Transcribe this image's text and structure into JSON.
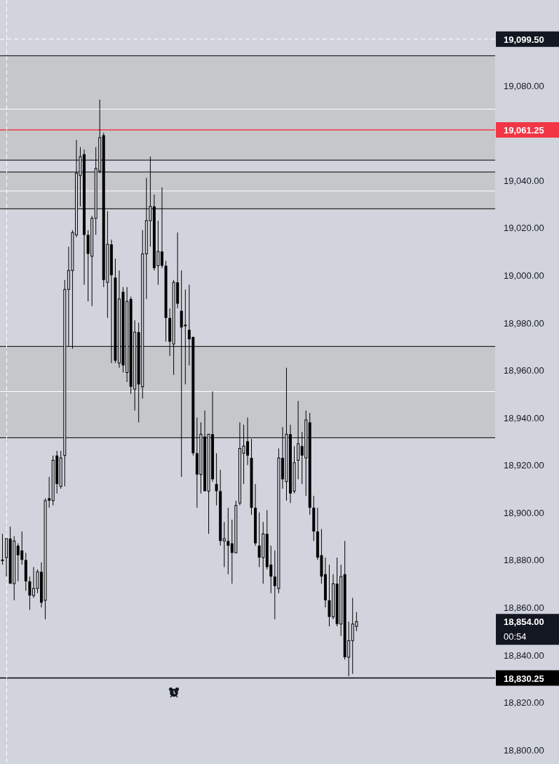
{
  "chart_data": {
    "type": "candlestick",
    "color": "#000000",
    "categories": [
      null,
      null,
      null,
      null,
      null,
      null,
      null,
      null,
      null,
      null,
      null,
      null,
      null,
      null,
      null,
      null,
      null,
      null,
      null,
      null,
      null,
      null,
      null,
      null,
      null,
      null,
      null,
      null,
      null,
      null,
      null,
      null,
      null,
      null,
      null,
      null,
      null,
      null,
      null,
      null,
      null,
      null,
      null,
      null,
      null,
      null,
      null,
      null,
      null,
      null,
      null,
      null,
      null,
      null,
      null,
      null,
      null,
      null,
      null,
      null,
      null,
      null,
      null,
      null,
      null,
      null,
      null,
      null,
      null,
      null,
      null,
      null,
      null,
      null,
      null,
      null,
      null,
      null,
      null,
      null,
      null,
      null,
      null,
      null,
      null,
      null,
      null,
      null,
      null,
      null,
      null,
      null,
      null,
      null,
      null,
      null,
      null,
      null,
      null,
      null,
      null,
      null,
      null,
      null,
      null,
      null,
      null,
      null,
      null,
      null,
      null,
      null,
      null,
      null,
      null,
      null,
      null,
      null,
      null,
      null,
      null,
      null,
      null,
      null,
      null,
      null,
      null
    ],
    "ohlc": [
      [
        18880,
        18891,
        18878,
        18880
      ],
      [
        18881,
        18889,
        18873,
        18889
      ],
      [
        18889,
        18894,
        18870,
        18870
      ],
      [
        18870,
        18890,
        18863,
        18888
      ],
      [
        18886,
        18887,
        18871,
        18882
      ],
      [
        18884,
        18892,
        18878,
        18880
      ],
      [
        18880,
        18883,
        18867,
        18871
      ],
      [
        18871,
        18873,
        18859,
        18865
      ],
      [
        18865,
        18877,
        18864,
        18868
      ],
      [
        18868,
        18876,
        18866,
        18875
      ],
      [
        18875,
        18879,
        18860,
        18862
      ],
      [
        18863,
        18906,
        18855,
        18905
      ],
      [
        18906,
        18915,
        18902,
        18905
      ],
      [
        18905,
        18924,
        18903,
        18922
      ],
      [
        18924,
        18926,
        18908,
        18912
      ],
      [
        18911,
        18926,
        18910,
        18923
      ],
      [
        18924,
        18998,
        18911,
        18994
      ],
      [
        18994,
        19012,
        18970,
        19002
      ],
      [
        19002,
        19019,
        18969,
        19018
      ],
      [
        19017,
        19057,
        19016,
        19043
      ],
      [
        19042,
        19054,
        19029,
        19050
      ],
      [
        19051,
        19053,
        18996,
        19017
      ],
      [
        19017,
        19019,
        18989,
        19009
      ],
      [
        19008,
        19025,
        18987,
        19024
      ],
      [
        19024,
        19054,
        19017,
        19045
      ],
      [
        19044,
        19074,
        19043,
        19058
      ],
      [
        19059,
        19060,
        18995,
        18998
      ],
      [
        18997,
        19027,
        18982,
        19013
      ],
      [
        19013,
        19015,
        18963,
        19000
      ],
      [
        18999,
        19007,
        18963,
        18964
      ],
      [
        18963,
        19002,
        18961,
        18990
      ],
      [
        18993,
        18995,
        18959,
        18962
      ],
      [
        18959,
        18995,
        18955,
        18989
      ],
      [
        18990,
        18991,
        18950,
        18953
      ],
      [
        18952,
        18981,
        18943,
        18976
      ],
      [
        18976,
        18980,
        18938,
        18954
      ],
      [
        18953,
        19019,
        18948,
        19009
      ],
      [
        19009,
        19041,
        18990,
        19023
      ],
      [
        19023,
        19050,
        19012,
        19029
      ],
      [
        19029,
        19034,
        19002,
        19003
      ],
      [
        19004,
        19023,
        18996,
        19010
      ],
      [
        19010,
        19037,
        19003,
        19004
      ],
      [
        19004,
        19006,
        18972,
        18982
      ],
      [
        18982,
        18986,
        18966,
        18972
      ],
      [
        18971,
        18998,
        18958,
        18997
      ],
      [
        18997,
        19018,
        18986,
        18988
      ],
      [
        18985,
        19002,
        18915,
        18978
      ],
      [
        18979,
        18994,
        18954,
        18979
      ],
      [
        18977,
        18996,
        18962,
        18973
      ],
      [
        18974,
        18974,
        18924,
        18925
      ],
      [
        18925,
        18940,
        18902,
        18916
      ],
      [
        18916,
        18938,
        18908,
        18933
      ],
      [
        18932,
        18943,
        18909,
        18909
      ],
      [
        18909,
        18933,
        18891,
        18933
      ],
      [
        18933,
        18951,
        18913,
        18914
      ],
      [
        18912,
        18925,
        18903,
        18909
      ],
      [
        18909,
        18918,
        18886,
        18888
      ],
      [
        18888,
        18896,
        18877,
        18889
      ],
      [
        18888,
        18902,
        18874,
        18886
      ],
      [
        18887,
        18897,
        18870,
        18883
      ],
      [
        18883,
        18905,
        18883,
        18903
      ],
      [
        18904,
        18938,
        18903,
        18927
      ],
      [
        18925,
        18937,
        18912,
        18928
      ],
      [
        18930,
        18940,
        18920,
        18924
      ],
      [
        18923,
        18931,
        18899,
        18902
      ],
      [
        18902,
        18912,
        18886,
        18887
      ],
      [
        18886,
        18900,
        18877,
        18881
      ],
      [
        18881,
        18896,
        18870,
        18891
      ],
      [
        18891,
        18901,
        18876,
        18877
      ],
      [
        18878,
        18886,
        18866,
        18873
      ],
      [
        18873,
        18884,
        18855,
        18869
      ],
      [
        18868,
        18927,
        18866,
        18923
      ],
      [
        18923,
        18936,
        18910,
        18914
      ],
      [
        18913,
        18961,
        18905,
        18933
      ],
      [
        18933,
        18937,
        18904,
        18908
      ],
      [
        18909,
        18928,
        18908,
        18921
      ],
      [
        18922,
        18947,
        18914,
        18929
      ],
      [
        18928,
        18934,
        18912,
        18924
      ],
      [
        18923,
        18943,
        18907,
        18939
      ],
      [
        18938,
        18942,
        18899,
        18902
      ],
      [
        18902,
        18907,
        18888,
        18892
      ],
      [
        18892,
        18902,
        18880,
        18881
      ],
      [
        18882,
        18893,
        18870,
        18873
      ],
      [
        18874,
        18881,
        18860,
        18863
      ],
      [
        18863,
        18878,
        18852,
        18856
      ],
      [
        18856,
        18874,
        18855,
        18870
      ],
      [
        18870,
        18881,
        18852,
        18853
      ],
      [
        18853,
        18878,
        18848,
        18873
      ],
      [
        18874,
        18888,
        18838,
        18839
      ],
      [
        18839,
        18854,
        18831,
        18846
      ],
      [
        18846,
        18864,
        18832,
        18853
      ],
      [
        18852,
        18858,
        18850,
        18854
      ],
      null,
      null,
      null,
      null,
      null,
      null,
      null,
      null,
      null,
      null,
      null,
      null,
      null,
      null,
      null,
      null,
      null,
      null,
      null,
      null,
      null,
      null,
      null,
      null,
      null,
      null,
      null,
      null,
      null,
      null,
      null,
      null,
      null,
      null,
      null
    ],
    "ylim": [
      18794,
      19116
    ],
    "yticks": [
      {
        "value": 18800,
        "label": "18,800.00"
      },
      {
        "value": 18820,
        "label": "18,820.00"
      },
      {
        "value": 18840,
        "label": "18,840.00"
      },
      {
        "value": 18860,
        "label": "18,860.00"
      },
      {
        "value": 18880,
        "label": "18,880.00"
      },
      {
        "value": 18900,
        "label": "18,900.00"
      },
      {
        "value": 18920,
        "label": "18,920.00"
      },
      {
        "value": 18940,
        "label": "18,940.00"
      },
      {
        "value": 18960,
        "label": "18,960.00"
      },
      {
        "value": 18980,
        "label": "18,980.00"
      },
      {
        "value": 19000,
        "label": "19,000.00"
      },
      {
        "value": 19020,
        "label": "19,020.00"
      },
      {
        "value": 19040,
        "label": "19,040.00"
      },
      {
        "value": 19080,
        "label": "19,080.00"
      }
    ],
    "tick_labels": "y",
    "bands": [
      {
        "axis": "y",
        "from": 19048.5,
        "to": 19092.5,
        "color": "#c6c7cb"
      },
      {
        "axis": "y",
        "from": 19028,
        "to": 19043.5,
        "color": "#c6c7cb"
      },
      {
        "axis": "y",
        "from": 18931.5,
        "to": 18970,
        "color": "#c6c7cb"
      }
    ],
    "ref_lines": [
      {
        "axis": "y",
        "value": 19099.5,
        "label": "19,099.50",
        "color": "#ffffff",
        "line_style": "dashed"
      },
      {
        "axis": "y",
        "value": 19061.25,
        "label": "19,061.25",
        "color": "#f23645"
      },
      {
        "axis": "y",
        "value": 18830.25,
        "label": "18,830.25",
        "color": "#000000"
      },
      {
        "axis": "y",
        "value": 19070,
        "color": "#ffffff"
      },
      {
        "axis": "y",
        "value": 19035.5,
        "color": "#ffffff"
      },
      {
        "axis": "y",
        "value": 18951,
        "color": "#ffffff"
      }
    ],
    "annotations": [
      "18,854.00",
      "00:54"
    ]
  }
}
